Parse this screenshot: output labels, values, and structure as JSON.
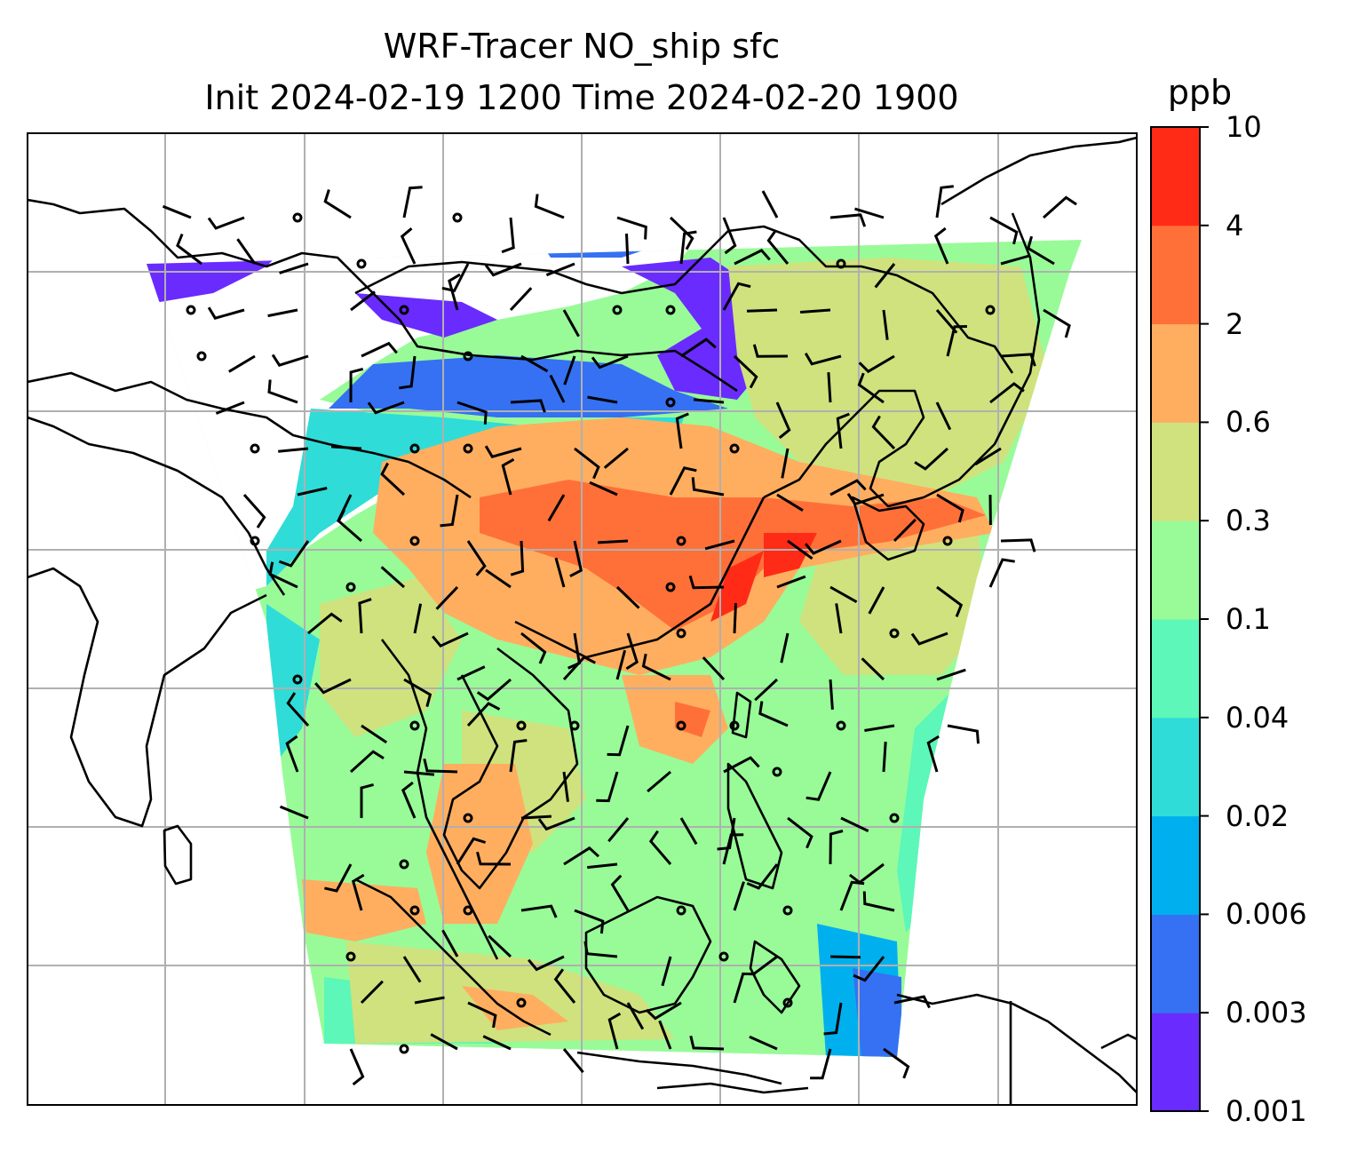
{
  "title": {
    "line1": "WRF-Tracer NO_ship sfc",
    "line2": "Init 2024-02-19 1200 Time 2024-02-20 1900"
  },
  "colorbar": {
    "unit": "ppb",
    "levels": [
      "0.001",
      "0.003",
      "0.006",
      "0.02",
      "0.04",
      "0.1",
      "0.3",
      "0.6",
      "2",
      "4",
      "10"
    ],
    "colors": [
      "#6a2bff",
      "#3571f2",
      "#00b0ee",
      "#30dcd7",
      "#5cf7b9",
      "#98fb98",
      "#cfe27e",
      "#ffae60",
      "#ff7038",
      "#ff2b16"
    ]
  },
  "map": {
    "features": [
      "coastlines",
      "country-borders",
      "lat-lon-gridlines",
      "wind-barbs",
      "filled-contours"
    ],
    "calm_marker": "circle"
  }
}
